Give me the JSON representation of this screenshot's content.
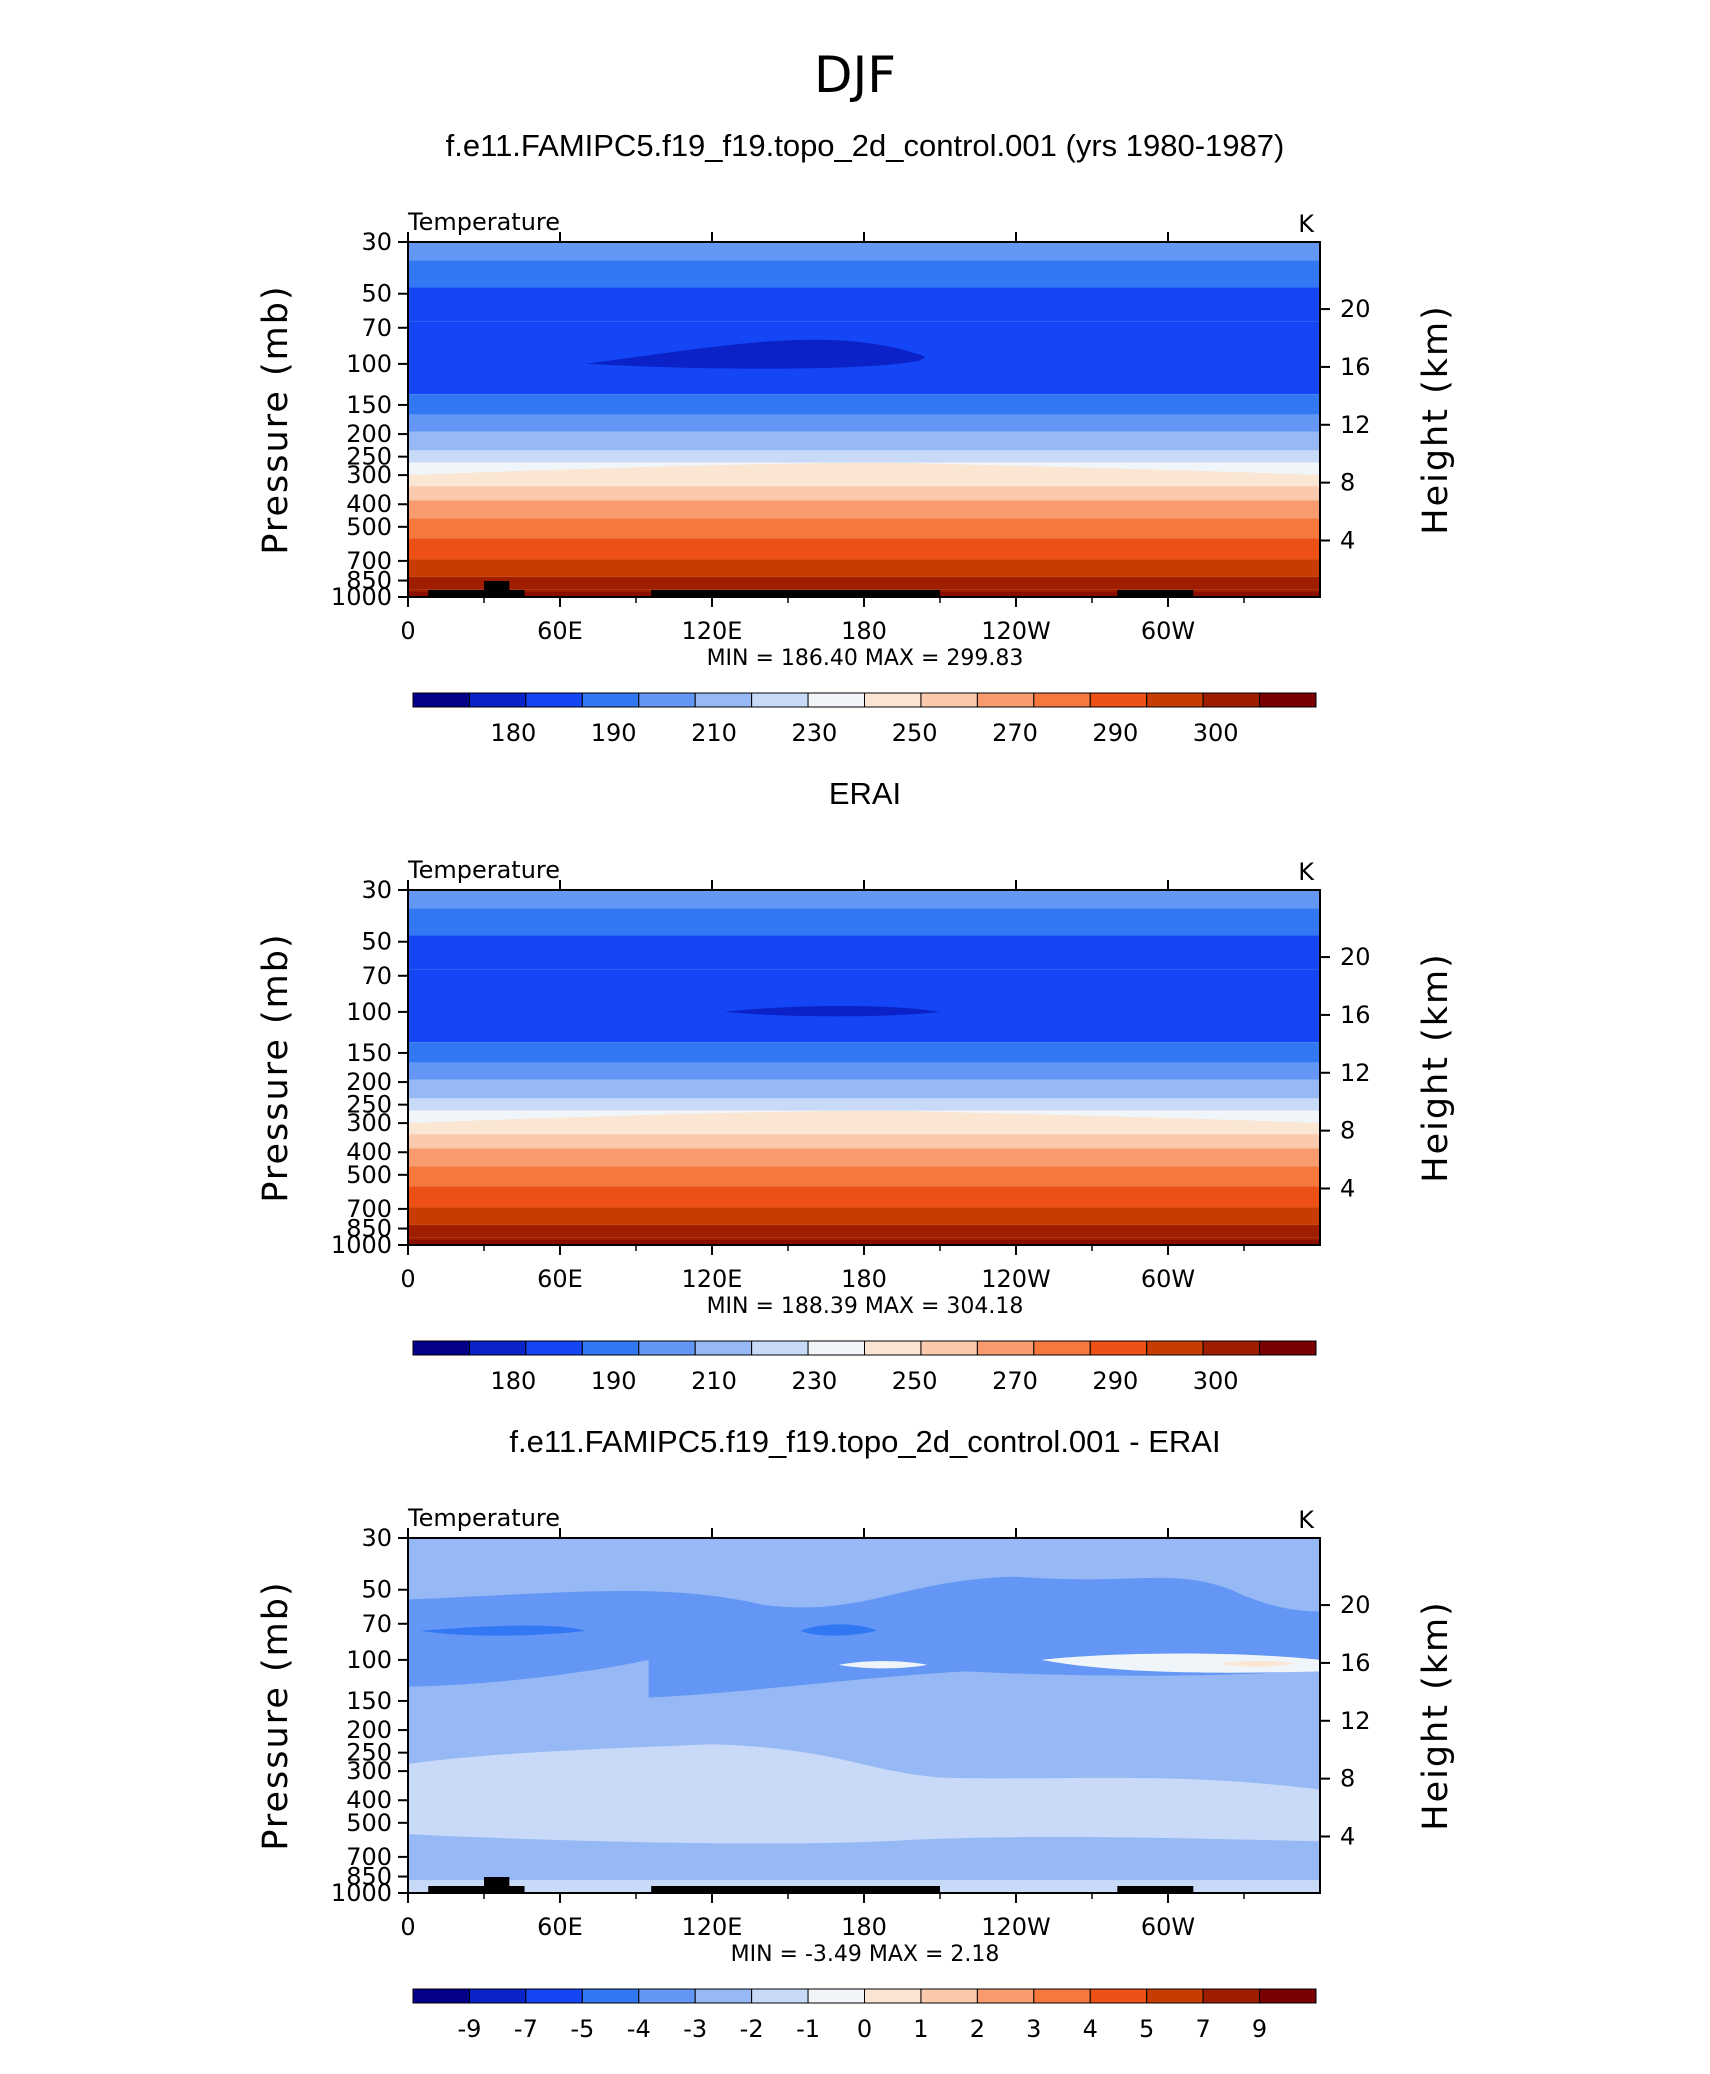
{
  "figure_title": "DJF",
  "chart_data": [
    {
      "type": "contour",
      "panel_title": "f.e11.FAMIPC5.f19_f19.topo_2d_control.001 (yrs 1980-1987)",
      "variable": "Temperature",
      "units": "K",
      "ylabel": "Pressure (mb)",
      "ylabel_right": "Height (km)",
      "pressure_ticks": [
        "30",
        "50",
        "70",
        "100",
        "150",
        "200",
        "250",
        "300",
        "400",
        "500",
        "700",
        "850",
        "1000"
      ],
      "height_ticks": [
        "20",
        "16",
        "12",
        "8",
        "4"
      ],
      "lon_ticks": [
        "0",
        "60E",
        "120E",
        "180",
        "120W",
        "60W"
      ],
      "min_label": "MIN",
      "min_value": "186.40",
      "max_label": "MAX",
      "max_value": "299.83",
      "colorbar_labels": [
        "180",
        "190",
        "210",
        "230",
        "250",
        "270",
        "290",
        "300"
      ],
      "colors": [
        "#05008c",
        "#0a22c8",
        "#1446f5",
        "#3278f5",
        "#6496f5",
        "#96b9f5",
        "#c8daf7",
        "#f0f5fa",
        "#fae6d2",
        "#fac8aa",
        "#fa9b6e",
        "#f5783c",
        "#ed5014",
        "#c83c00",
        "#a01e00",
        "#780000"
      ]
    },
    {
      "type": "contour",
      "panel_title": "ERAI",
      "variable": "Temperature",
      "units": "K",
      "ylabel": "Pressure (mb)",
      "ylabel_right": "Height (km)",
      "pressure_ticks": [
        "30",
        "50",
        "70",
        "100",
        "150",
        "200",
        "250",
        "300",
        "400",
        "500",
        "700",
        "850",
        "1000"
      ],
      "height_ticks": [
        "20",
        "16",
        "12",
        "8",
        "4"
      ],
      "lon_ticks": [
        "0",
        "60E",
        "120E",
        "180",
        "120W",
        "60W"
      ],
      "min_label": "MIN",
      "min_value": "188.39",
      "max_label": "MAX",
      "max_value": "304.18",
      "colorbar_labels": [
        "180",
        "190",
        "210",
        "230",
        "250",
        "270",
        "290",
        "300"
      ],
      "colors": [
        "#05008c",
        "#0a22c8",
        "#1446f5",
        "#3278f5",
        "#6496f5",
        "#96b9f5",
        "#c8daf7",
        "#f0f5fa",
        "#fae6d2",
        "#fac8aa",
        "#fa9b6e",
        "#f5783c",
        "#ed5014",
        "#c83c00",
        "#a01e00",
        "#780000"
      ]
    },
    {
      "type": "contour",
      "panel_title": "f.e11.FAMIPC5.f19_f19.topo_2d_control.001 - ERAI",
      "variable": "Temperature",
      "units": "K",
      "ylabel": "Pressure (mb)",
      "ylabel_right": "Height (km)",
      "pressure_ticks": [
        "30",
        "50",
        "70",
        "100",
        "150",
        "200",
        "250",
        "300",
        "400",
        "500",
        "700",
        "850",
        "1000"
      ],
      "height_ticks": [
        "20",
        "16",
        "12",
        "8",
        "4"
      ],
      "lon_ticks": [
        "0",
        "60E",
        "120E",
        "180",
        "120W",
        "60W"
      ],
      "min_label": "MIN",
      "min_value": "-3.49",
      "max_label": "MAX",
      "max_value": "2.18",
      "colorbar_labels": [
        "-9",
        "-7",
        "-5",
        "-4",
        "-3",
        "-2",
        "-1",
        "0",
        "1",
        "2",
        "3",
        "4",
        "5",
        "7",
        "9"
      ],
      "colors": [
        "#05008c",
        "#0a22c8",
        "#1446f5",
        "#3278f5",
        "#6496f5",
        "#96b9f5",
        "#c8daf7",
        "#f0f5fa",
        "#fae6d2",
        "#fac8aa",
        "#fa9b6e",
        "#f5783c",
        "#ed5014",
        "#c83c00",
        "#a01e00",
        "#780000"
      ]
    }
  ]
}
